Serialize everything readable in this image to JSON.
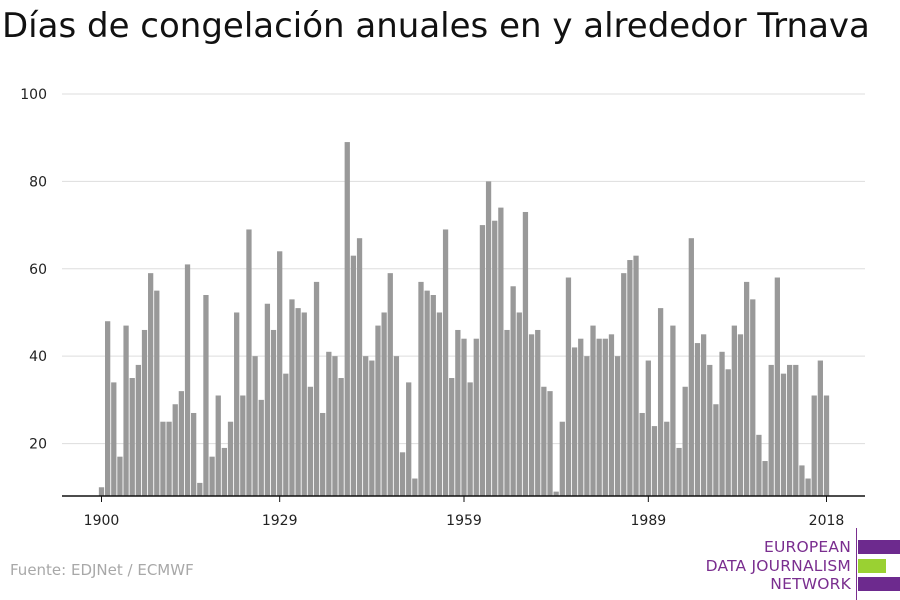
{
  "chart_data": {
    "type": "bar",
    "title": "Días de congelación anuales en y alrededor Trnava",
    "xlabel": "",
    "ylabel": "",
    "x_start": 1900,
    "x_end": 2018,
    "xticks": [
      "1900",
      "1929",
      "1959",
      "1989",
      "2018"
    ],
    "yticks": [
      "20",
      "40",
      "60",
      "80",
      "100"
    ],
    "ylim": [
      8,
      100
    ],
    "grid": true,
    "bar_color": "#999999",
    "values": [
      10,
      48,
      34,
      17,
      47,
      35,
      38,
      46,
      59,
      55,
      25,
      25,
      29,
      32,
      61,
      27,
      11,
      54,
      17,
      31,
      19,
      25,
      50,
      31,
      69,
      40,
      30,
      52,
      46,
      64,
      36,
      53,
      51,
      50,
      33,
      57,
      27,
      41,
      40,
      35,
      89,
      63,
      67,
      40,
      39,
      47,
      50,
      59,
      40,
      18,
      34,
      12,
      57,
      55,
      54,
      50,
      69,
      35,
      46,
      44,
      34,
      44,
      70,
      80,
      71,
      74,
      46,
      56,
      50,
      73,
      45,
      46,
      33,
      32,
      9,
      25,
      58,
      42,
      44,
      40,
      47,
      44,
      44,
      45,
      40,
      59,
      62,
      63,
      27,
      39,
      24,
      51,
      25,
      47,
      19,
      33,
      67,
      43,
      45,
      38,
      29,
      41,
      37,
      47,
      45,
      57,
      53,
      22,
      16,
      38,
      58,
      36,
      38,
      38,
      15,
      12,
      31,
      39,
      31
    ]
  },
  "footer": {
    "source": "Fuente: EDJNet / ECMWF"
  },
  "logo": {
    "line1": "EUROPEAN",
    "line2": "DATA JOURNALISM",
    "line3": "NETWORK",
    "purple": "#6d2a8e",
    "green": "#9ad132"
  }
}
